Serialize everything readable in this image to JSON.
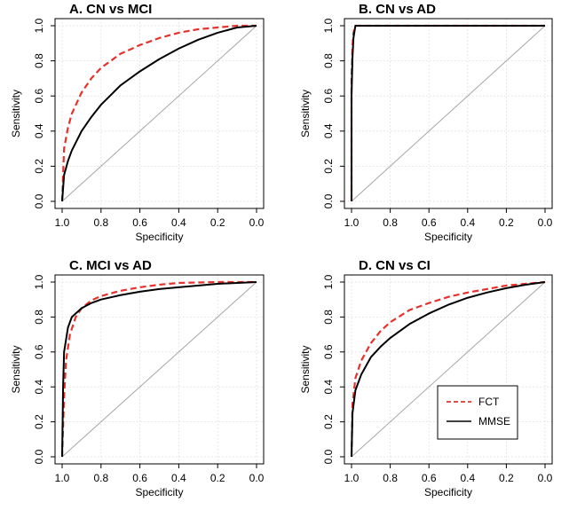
{
  "chart_data": [
    {
      "type": "line",
      "title": "A. CN vs MCI",
      "xlabel": "Specificity",
      "ylabel": "Sensitivity",
      "xlim": [
        1.0,
        0.0
      ],
      "ylim": [
        0.0,
        1.0
      ],
      "x_reversed": true,
      "xticks": [
        "1.0",
        "0.8",
        "0.6",
        "0.4",
        "0.2",
        "0.0"
      ],
      "yticks": [
        "0.0",
        "0.2",
        "0.4",
        "0.6",
        "0.8",
        "1.0"
      ],
      "grid": true,
      "reference_line": "diagonal",
      "series": [
        {
          "name": "FCT",
          "color": "#e8312b",
          "dash": "dashed",
          "x": [
            1.0,
            0.99,
            0.97,
            0.95,
            0.9,
            0.85,
            0.8,
            0.7,
            0.6,
            0.5,
            0.4,
            0.3,
            0.2,
            0.1,
            0.0
          ],
          "y": [
            0.0,
            0.3,
            0.42,
            0.5,
            0.62,
            0.7,
            0.76,
            0.84,
            0.89,
            0.93,
            0.96,
            0.98,
            0.99,
            1.0,
            1.0
          ]
        },
        {
          "name": "MMSE",
          "color": "#000000",
          "dash": "solid",
          "x": [
            1.0,
            0.99,
            0.97,
            0.95,
            0.9,
            0.85,
            0.8,
            0.7,
            0.6,
            0.5,
            0.4,
            0.3,
            0.2,
            0.1,
            0.0
          ],
          "y": [
            0.0,
            0.15,
            0.23,
            0.29,
            0.4,
            0.48,
            0.55,
            0.66,
            0.74,
            0.81,
            0.87,
            0.92,
            0.96,
            0.99,
            1.0
          ]
        }
      ]
    },
    {
      "type": "line",
      "title": "B. CN vs AD",
      "xlabel": "Specificity",
      "ylabel": "Sensitivity",
      "xlim": [
        1.0,
        0.0
      ],
      "ylim": [
        0.0,
        1.0
      ],
      "x_reversed": true,
      "xticks": [
        "1.0",
        "0.8",
        "0.6",
        "0.4",
        "0.2",
        "0.0"
      ],
      "yticks": [
        "0.0",
        "0.2",
        "0.4",
        "0.6",
        "0.8",
        "1.0"
      ],
      "grid": true,
      "reference_line": "diagonal",
      "series": [
        {
          "name": "FCT",
          "color": "#e8312b",
          "dash": "dashed",
          "x": [
            1.0,
            1.0,
            0.995,
            0.99,
            0.98,
            0.0
          ],
          "y": [
            0.0,
            0.7,
            0.88,
            0.96,
            1.0,
            1.0
          ]
        },
        {
          "name": "MMSE",
          "color": "#000000",
          "dash": "solid",
          "x": [
            1.0,
            1.0,
            0.995,
            0.99,
            0.98,
            0.0
          ],
          "y": [
            0.0,
            0.6,
            0.82,
            0.93,
            1.0,
            1.0
          ]
        }
      ]
    },
    {
      "type": "line",
      "title": "C. MCI vs AD",
      "xlabel": "Specificity",
      "ylabel": "Sensitivity",
      "xlim": [
        1.0,
        0.0
      ],
      "ylim": [
        0.0,
        1.0
      ],
      "x_reversed": true,
      "xticks": [
        "1.0",
        "0.8",
        "0.6",
        "0.4",
        "0.2",
        "0.0"
      ],
      "yticks": [
        "0.0",
        "0.2",
        "0.4",
        "0.6",
        "0.8",
        "1.0"
      ],
      "grid": true,
      "reference_line": "diagonal",
      "series": [
        {
          "name": "FCT",
          "color": "#e8312b",
          "dash": "dashed",
          "x": [
            1.0,
            0.99,
            0.98,
            0.96,
            0.93,
            0.9,
            0.85,
            0.8,
            0.7,
            0.6,
            0.5,
            0.4,
            0.2,
            0.0
          ],
          "y": [
            0.0,
            0.35,
            0.55,
            0.7,
            0.8,
            0.85,
            0.895,
            0.92,
            0.95,
            0.97,
            0.985,
            0.995,
            1.0,
            1.0
          ]
        },
        {
          "name": "MMSE",
          "color": "#000000",
          "dash": "solid",
          "x": [
            1.0,
            0.995,
            0.99,
            0.97,
            0.95,
            0.9,
            0.85,
            0.8,
            0.7,
            0.6,
            0.5,
            0.4,
            0.2,
            0.0
          ],
          "y": [
            0.0,
            0.4,
            0.6,
            0.74,
            0.8,
            0.85,
            0.88,
            0.9,
            0.925,
            0.945,
            0.96,
            0.97,
            0.99,
            1.0
          ]
        }
      ]
    },
    {
      "type": "line",
      "title": "D. CN vs CI",
      "xlabel": "Specificity",
      "ylabel": "Sensitivity",
      "xlim": [
        1.0,
        0.0
      ],
      "ylim": [
        0.0,
        1.0
      ],
      "x_reversed": true,
      "xticks": [
        "1.0",
        "0.8",
        "0.6",
        "0.4",
        "0.2",
        "0.0"
      ],
      "yticks": [
        "0.0",
        "0.2",
        "0.4",
        "0.6",
        "0.8",
        "1.0"
      ],
      "grid": true,
      "reference_line": "diagonal",
      "legend": {
        "placement": "bottom-right",
        "entries": [
          "FCT",
          "MMSE"
        ]
      },
      "series": [
        {
          "name": "FCT",
          "color": "#e8312b",
          "dash": "dashed",
          "x": [
            1.0,
            0.995,
            0.98,
            0.95,
            0.9,
            0.85,
            0.8,
            0.7,
            0.6,
            0.5,
            0.4,
            0.3,
            0.2,
            0.1,
            0.0
          ],
          "y": [
            0.0,
            0.3,
            0.45,
            0.55,
            0.65,
            0.72,
            0.77,
            0.84,
            0.88,
            0.915,
            0.94,
            0.96,
            0.98,
            0.99,
            1.0
          ]
        },
        {
          "name": "MMSE",
          "color": "#000000",
          "dash": "solid",
          "x": [
            1.0,
            0.995,
            0.98,
            0.95,
            0.9,
            0.85,
            0.8,
            0.7,
            0.6,
            0.5,
            0.4,
            0.3,
            0.2,
            0.1,
            0.0
          ],
          "y": [
            0.0,
            0.25,
            0.38,
            0.47,
            0.57,
            0.63,
            0.68,
            0.76,
            0.82,
            0.87,
            0.91,
            0.94,
            0.965,
            0.985,
            1.0
          ]
        }
      ]
    }
  ]
}
